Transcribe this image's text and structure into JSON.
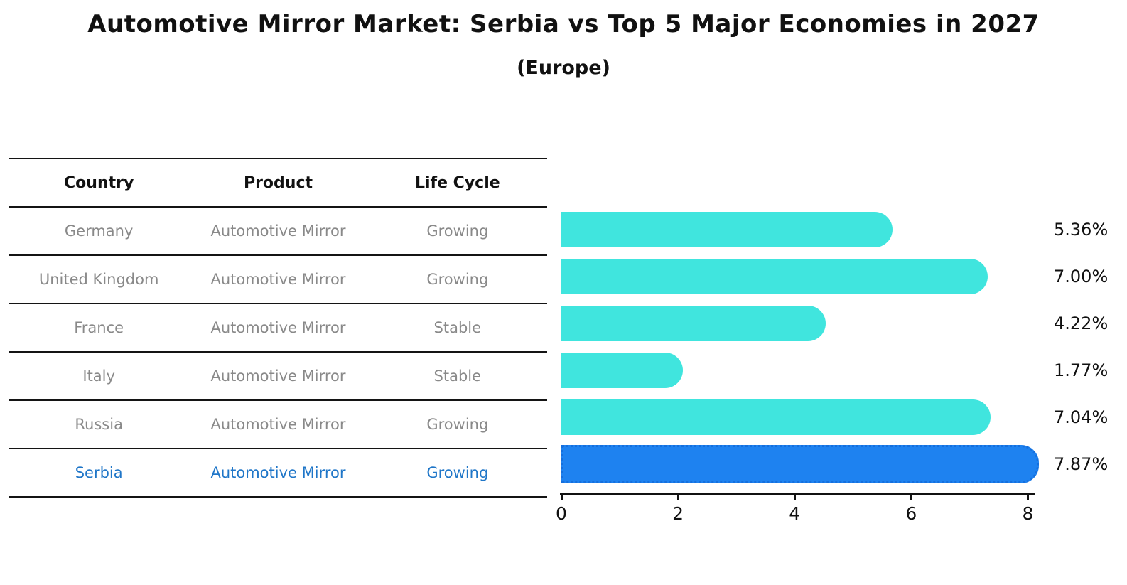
{
  "header": {
    "title": "Automotive Mirror Market: Serbia vs Top 5 Major Economies in 2027",
    "subtitle": "(Europe)"
  },
  "table": {
    "columns": [
      "Country",
      "Product",
      "Life Cycle"
    ],
    "rows": [
      {
        "country": "Germany",
        "product": "Automotive Mirror",
        "life_cycle": "Growing",
        "highlight": false
      },
      {
        "country": "United Kingdom",
        "product": "Automotive Mirror",
        "life_cycle": "Growing",
        "highlight": false
      },
      {
        "country": "France",
        "product": "Automotive Mirror",
        "life_cycle": "Stable",
        "highlight": false
      },
      {
        "country": "Italy",
        "product": "Automotive Mirror",
        "life_cycle": "Stable",
        "highlight": false
      },
      {
        "country": "Russia",
        "product": "Automotive Mirror",
        "life_cycle": "Growing",
        "highlight": false
      },
      {
        "country": "Serbia",
        "product": "Automotive Mirror",
        "life_cycle": "Growing",
        "highlight": true
      }
    ]
  },
  "chart_data": {
    "type": "bar",
    "orientation": "horizontal",
    "title": "Automotive Mirror Market: Serbia vs Top 5 Major Economies in 2027 (Europe)",
    "categories": [
      "Germany",
      "United Kingdom",
      "France",
      "Italy",
      "Russia",
      "Serbia"
    ],
    "values": [
      5.36,
      7.0,
      4.22,
      1.77,
      7.04,
      7.87
    ],
    "bar_labels": [
      "5.36%",
      "7.00%",
      "4.22%",
      "1.77%",
      "7.04%",
      "7.87%"
    ],
    "xlabel": "",
    "ylabel": "",
    "xlim": [
      0,
      8
    ],
    "xticks": [
      0,
      2,
      4,
      6,
      8
    ],
    "grid": false,
    "legend": false,
    "highlight_category": "Serbia",
    "colors": {
      "bar": "#40e5de",
      "highlight_bar": "#1e82f0",
      "highlight_border": "#156fdd",
      "highlight_text": "#1f76c8",
      "row_text": "#898989",
      "header_text": "#111111",
      "axis": "#111111"
    }
  }
}
